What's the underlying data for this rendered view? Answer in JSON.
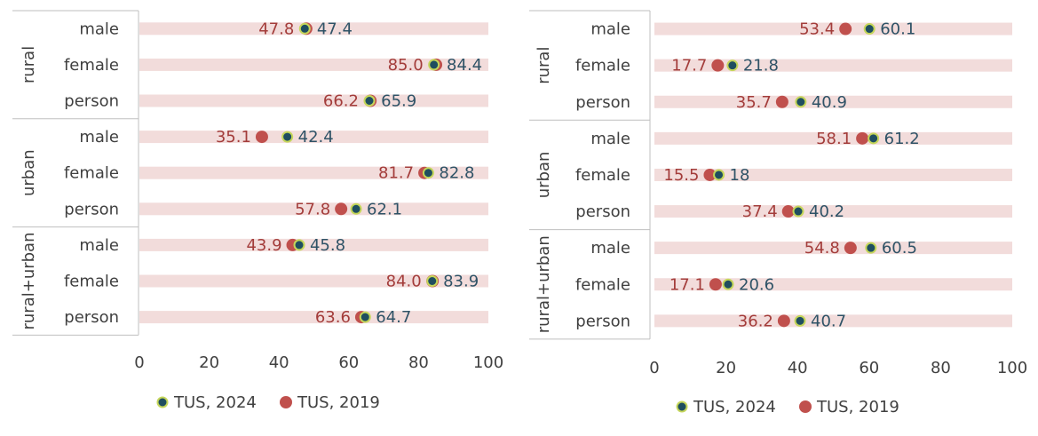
{
  "chart_data": [
    {
      "type": "dot",
      "groups": [
        {
          "name": "rural",
          "categories": [
            "male",
            "female",
            "person"
          ]
        },
        {
          "name": "urban",
          "categories": [
            "male",
            "female",
            "person"
          ]
        },
        {
          "name": "rural+urban",
          "categories": [
            "male",
            "female",
            "person"
          ]
        }
      ],
      "series": [
        {
          "name": "TUS, 2024",
          "values": [
            47.4,
            84.4,
            65.9,
            42.4,
            82.8,
            62.1,
            45.8,
            83.9,
            64.7
          ],
          "labels": [
            "47.4",
            "84.4",
            "65.9",
            "42.4",
            "82.8",
            "62.1",
            "45.8",
            "83.9",
            "64.7"
          ]
        },
        {
          "name": "TUS, 2019",
          "values": [
            47.8,
            85.0,
            66.2,
            35.1,
            81.7,
            57.8,
            43.9,
            84.0,
            63.6
          ],
          "labels": [
            "47.8",
            "85.0",
            "66.2",
            "35.1",
            "81.7",
            "57.8",
            "43.9",
            "84.0",
            "63.6"
          ]
        }
      ],
      "xlim": [
        0,
        100
      ],
      "xticks": [
        "0",
        "20",
        "40",
        "60",
        "80",
        "100"
      ],
      "legend": "bottom"
    },
    {
      "type": "dot",
      "groups": [
        {
          "name": "rural",
          "categories": [
            "male",
            "female",
            "person"
          ]
        },
        {
          "name": "urban",
          "categories": [
            "male",
            "female",
            "person"
          ]
        },
        {
          "name": "rural+urban",
          "categories": [
            "male",
            "female",
            "person"
          ]
        }
      ],
      "series": [
        {
          "name": "TUS, 2024",
          "values": [
            60.1,
            21.8,
            40.9,
            61.2,
            18,
            40.2,
            60.5,
            20.6,
            40.7
          ],
          "labels": [
            "60.1",
            "21.8",
            "40.9",
            "61.2",
            "18",
            "40.2",
            "60.5",
            "20.6",
            "40.7"
          ]
        },
        {
          "name": "TUS, 2019",
          "values": [
            53.4,
            17.7,
            35.7,
            58.1,
            15.5,
            37.4,
            54.8,
            17.1,
            36.2
          ],
          "labels": [
            "53.4",
            "17.7",
            "35.7",
            "58.1",
            "15.5",
            "37.4",
            "54.8",
            "17.1",
            "36.2"
          ]
        }
      ],
      "xlim": [
        0,
        100
      ],
      "xticks": [
        "0",
        "20",
        "40",
        "60",
        "80",
        "100"
      ],
      "legend": "bottom"
    }
  ],
  "colors": {
    "series_2024_fill": "#1f4e5f",
    "series_2024_ring": "#c5d65a",
    "series_2019_fill": "#c0504d",
    "band": "#f2dcdb",
    "label_2024": "#2e5266",
    "label_2019": "#a33c3a",
    "category_text": "#404040",
    "axis_line": "#bfbfbf"
  }
}
